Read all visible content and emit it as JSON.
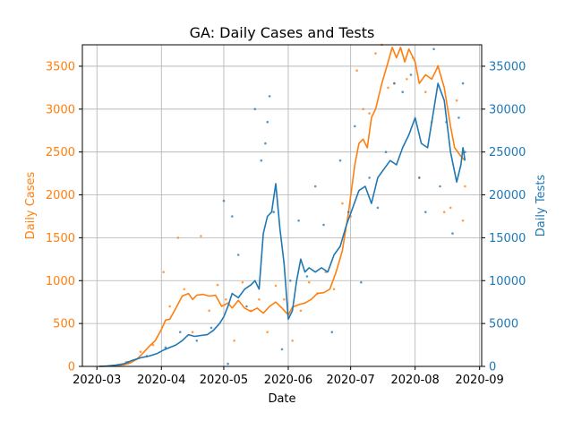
{
  "chart_data": {
    "type": "line",
    "title": "GA: Daily Cases and Tests",
    "xlabel": "Date",
    "ylabel_left": "Daily Cases",
    "ylabel_right": "Daily Tests",
    "x_ticks": [
      "2020-03",
      "2020-04",
      "2020-05",
      "2020-06",
      "2020-07",
      "2020-08",
      "2020-09"
    ],
    "ylim_left": [
      0,
      3750
    ],
    "yticks_left": [
      "0",
      "500",
      "1000",
      "1500",
      "2000",
      "2500",
      "3000",
      "3500"
    ],
    "ylim_right": [
      0,
      37500
    ],
    "yticks_right": [
      "0",
      "5000",
      "10000",
      "15000",
      "20000",
      "25000",
      "30000",
      "35000"
    ],
    "grid": true,
    "colors": {
      "cases": "#ff7f0e",
      "tests": "#1f77b4",
      "grid": "#b0b0b0"
    },
    "series": [
      {
        "axis": "left",
        "style": "line (smoothed)",
        "points": [
          [
            "2020-03-02",
            0
          ],
          [
            "2020-03-05",
            2
          ],
          [
            "2020-03-08",
            5
          ],
          [
            "2020-03-11",
            10
          ],
          [
            "2020-03-14",
            20
          ],
          [
            "2020-03-17",
            40
          ],
          [
            "2020-03-20",
            80
          ],
          [
            "2020-03-23",
            150
          ],
          [
            "2020-03-26",
            230
          ],
          [
            "2020-03-29",
            300
          ],
          [
            "2020-04-01",
            430
          ],
          [
            "2020-04-03",
            540
          ],
          [
            "2020-04-05",
            550
          ],
          [
            "2020-04-08",
            680
          ],
          [
            "2020-04-11",
            820
          ],
          [
            "2020-04-14",
            850
          ],
          [
            "2020-04-16",
            780
          ],
          [
            "2020-04-18",
            830
          ],
          [
            "2020-04-21",
            840
          ],
          [
            "2020-04-24",
            820
          ],
          [
            "2020-04-27",
            830
          ],
          [
            "2020-04-30",
            700
          ],
          [
            "2020-05-03",
            740
          ],
          [
            "2020-05-05",
            680
          ],
          [
            "2020-05-08",
            770
          ],
          [
            "2020-05-11",
            680
          ],
          [
            "2020-05-14",
            640
          ],
          [
            "2020-05-17",
            680
          ],
          [
            "2020-05-20",
            620
          ],
          [
            "2020-05-23",
            700
          ],
          [
            "2020-05-26",
            750
          ],
          [
            "2020-05-29",
            680
          ],
          [
            "2020-06-01",
            600
          ],
          [
            "2020-06-03",
            690
          ],
          [
            "2020-06-06",
            720
          ],
          [
            "2020-06-09",
            740
          ],
          [
            "2020-06-12",
            780
          ],
          [
            "2020-06-15",
            850
          ],
          [
            "2020-06-18",
            860
          ],
          [
            "2020-06-21",
            900
          ],
          [
            "2020-06-24",
            1100
          ],
          [
            "2020-06-27",
            1350
          ],
          [
            "2020-06-30",
            1800
          ],
          [
            "2020-07-03",
            2350
          ],
          [
            "2020-07-05",
            2600
          ],
          [
            "2020-07-07",
            2650
          ],
          [
            "2020-07-09",
            2550
          ],
          [
            "2020-07-11",
            2900
          ],
          [
            "2020-07-13",
            3000
          ],
          [
            "2020-07-16",
            3300
          ],
          [
            "2020-07-19",
            3550
          ],
          [
            "2020-07-21",
            3720
          ],
          [
            "2020-07-23",
            3600
          ],
          [
            "2020-07-25",
            3720
          ],
          [
            "2020-07-27",
            3550
          ],
          [
            "2020-07-29",
            3700
          ],
          [
            "2020-08-01",
            3550
          ],
          [
            "2020-08-03",
            3300
          ],
          [
            "2020-08-06",
            3400
          ],
          [
            "2020-08-09",
            3350
          ],
          [
            "2020-08-12",
            3500
          ],
          [
            "2020-08-15",
            3250
          ],
          [
            "2020-08-18",
            2800
          ],
          [
            "2020-08-20",
            2550
          ],
          [
            "2020-08-23",
            2450
          ],
          [
            "2020-08-25",
            2400
          ]
        ]
      },
      {
        "axis": "left",
        "style": "scatter (raw daily)",
        "points": [
          [
            "2020-03-15",
            50
          ],
          [
            "2020-03-22",
            170
          ],
          [
            "2020-03-28",
            250
          ],
          [
            "2020-04-02",
            1100
          ],
          [
            "2020-04-05",
            700
          ],
          [
            "2020-04-09",
            1500
          ],
          [
            "2020-04-12",
            900
          ],
          [
            "2020-04-16",
            400
          ],
          [
            "2020-04-20",
            1520
          ],
          [
            "2020-04-24",
            650
          ],
          [
            "2020-04-28",
            950
          ],
          [
            "2020-05-02",
            780
          ],
          [
            "2020-05-06",
            300
          ],
          [
            "2020-05-10",
            980
          ],
          [
            "2020-05-14",
            650
          ],
          [
            "2020-05-18",
            780
          ],
          [
            "2020-05-22",
            400
          ],
          [
            "2020-05-26",
            940
          ],
          [
            "2020-05-30",
            780
          ],
          [
            "2020-06-03",
            300
          ],
          [
            "2020-06-07",
            650
          ],
          [
            "2020-06-11",
            980
          ],
          [
            "2020-06-15",
            850
          ],
          [
            "2020-06-19",
            1100
          ],
          [
            "2020-06-23",
            900
          ],
          [
            "2020-06-27",
            1900
          ],
          [
            "2020-07-01",
            1750
          ],
          [
            "2020-07-04",
            3450
          ],
          [
            "2020-07-07",
            3000
          ],
          [
            "2020-07-10",
            2950
          ],
          [
            "2020-07-13",
            3650
          ],
          [
            "2020-07-16",
            4000
          ],
          [
            "2020-07-19",
            3250
          ],
          [
            "2020-07-22",
            3300
          ],
          [
            "2020-07-25",
            3700
          ],
          [
            "2020-07-28",
            3350
          ],
          [
            "2020-07-31",
            3600
          ],
          [
            "2020-08-03",
            2200
          ],
          [
            "2020-08-06",
            3200
          ],
          [
            "2020-08-09",
            2850
          ],
          [
            "2020-08-12",
            3500
          ],
          [
            "2020-08-15",
            1800
          ],
          [
            "2020-08-18",
            1850
          ],
          [
            "2020-08-21",
            3100
          ],
          [
            "2020-08-24",
            1700
          ],
          [
            "2020-08-25",
            2100
          ]
        ]
      },
      {
        "axis": "right",
        "style": "line (smoothed)",
        "points": [
          [
            "2020-03-02",
            0
          ],
          [
            "2020-03-06",
            50
          ],
          [
            "2020-03-10",
            150
          ],
          [
            "2020-03-14",
            300
          ],
          [
            "2020-03-18",
            700
          ],
          [
            "2020-03-22",
            1000
          ],
          [
            "2020-03-26",
            1200
          ],
          [
            "2020-03-30",
            1500
          ],
          [
            "2020-04-02",
            1900
          ],
          [
            "2020-04-05",
            2200
          ],
          [
            "2020-04-08",
            2500
          ],
          [
            "2020-04-11",
            3000
          ],
          [
            "2020-04-14",
            3700
          ],
          [
            "2020-04-17",
            3500
          ],
          [
            "2020-04-20",
            3600
          ],
          [
            "2020-04-23",
            3700
          ],
          [
            "2020-04-26",
            4200
          ],
          [
            "2020-04-29",
            5000
          ],
          [
            "2020-05-01",
            5800
          ],
          [
            "2020-05-03",
            7000
          ],
          [
            "2020-05-05",
            8500
          ],
          [
            "2020-05-08",
            8000
          ],
          [
            "2020-05-11",
            9000
          ],
          [
            "2020-05-14",
            9500
          ],
          [
            "2020-05-16",
            10000
          ],
          [
            "2020-05-18",
            9000
          ],
          [
            "2020-05-20",
            15500
          ],
          [
            "2020-05-22",
            17500
          ],
          [
            "2020-05-24",
            18000
          ],
          [
            "2020-05-26",
            21300
          ],
          [
            "2020-05-28",
            16000
          ],
          [
            "2020-05-30",
            12000
          ],
          [
            "2020-06-01",
            5500
          ],
          [
            "2020-06-03",
            6500
          ],
          [
            "2020-06-05",
            10000
          ],
          [
            "2020-06-07",
            12500
          ],
          [
            "2020-06-09",
            11000
          ],
          [
            "2020-06-11",
            11500
          ],
          [
            "2020-06-14",
            11000
          ],
          [
            "2020-06-17",
            11500
          ],
          [
            "2020-06-20",
            11000
          ],
          [
            "2020-06-23",
            13000
          ],
          [
            "2020-06-26",
            14000
          ],
          [
            "2020-06-29",
            16500
          ],
          [
            "2020-07-02",
            18500
          ],
          [
            "2020-07-05",
            20500
          ],
          [
            "2020-07-08",
            21000
          ],
          [
            "2020-07-11",
            19000
          ],
          [
            "2020-07-14",
            22000
          ],
          [
            "2020-07-17",
            23000
          ],
          [
            "2020-07-20",
            24000
          ],
          [
            "2020-07-23",
            23500
          ],
          [
            "2020-07-26",
            25500
          ],
          [
            "2020-07-29",
            27000
          ],
          [
            "2020-08-01",
            29000
          ],
          [
            "2020-08-04",
            26000
          ],
          [
            "2020-08-07",
            25500
          ],
          [
            "2020-08-10",
            30000
          ],
          [
            "2020-08-12",
            33000
          ],
          [
            "2020-08-15",
            31000
          ],
          [
            "2020-08-18",
            25000
          ],
          [
            "2020-08-21",
            21500
          ],
          [
            "2020-08-23",
            23500
          ],
          [
            "2020-08-24",
            25500
          ],
          [
            "2020-08-25",
            24000
          ]
        ]
      },
      {
        "axis": "right",
        "style": "scatter (raw daily)",
        "points": [
          [
            "2020-03-16",
            500
          ],
          [
            "2020-03-25",
            1200
          ],
          [
            "2020-04-03",
            2200
          ],
          [
            "2020-04-10",
            4000
          ],
          [
            "2020-04-18",
            3000
          ],
          [
            "2020-04-25",
            4500
          ],
          [
            "2020-05-01",
            19300
          ],
          [
            "2020-05-03",
            300
          ],
          [
            "2020-05-05",
            17500
          ],
          [
            "2020-05-08",
            13000
          ],
          [
            "2020-05-12",
            7000
          ],
          [
            "2020-05-16",
            30000
          ],
          [
            "2020-05-19",
            24000
          ],
          [
            "2020-05-21",
            26000
          ],
          [
            "2020-05-22",
            28500
          ],
          [
            "2020-05-23",
            31500
          ],
          [
            "2020-05-25",
            18000
          ],
          [
            "2020-05-29",
            2000
          ],
          [
            "2020-06-02",
            10000
          ],
          [
            "2020-06-06",
            17000
          ],
          [
            "2020-06-10",
            10500
          ],
          [
            "2020-06-14",
            21000
          ],
          [
            "2020-06-18",
            16500
          ],
          [
            "2020-06-22",
            4000
          ],
          [
            "2020-06-26",
            24000
          ],
          [
            "2020-06-30",
            18000
          ],
          [
            "2020-07-03",
            28000
          ],
          [
            "2020-07-06",
            9800
          ],
          [
            "2020-07-10",
            22000
          ],
          [
            "2020-07-14",
            18500
          ],
          [
            "2020-07-18",
            25000
          ],
          [
            "2020-07-22",
            33000
          ],
          [
            "2020-07-26",
            32000
          ],
          [
            "2020-07-30",
            34000
          ],
          [
            "2020-08-03",
            22000
          ],
          [
            "2020-08-06",
            18000
          ],
          [
            "2020-08-10",
            37000
          ],
          [
            "2020-08-13",
            21000
          ],
          [
            "2020-08-16",
            28500
          ],
          [
            "2020-08-19",
            15500
          ],
          [
            "2020-08-22",
            29000
          ],
          [
            "2020-08-24",
            33000
          ],
          [
            "2020-08-25",
            25000
          ]
        ]
      }
    ]
  }
}
